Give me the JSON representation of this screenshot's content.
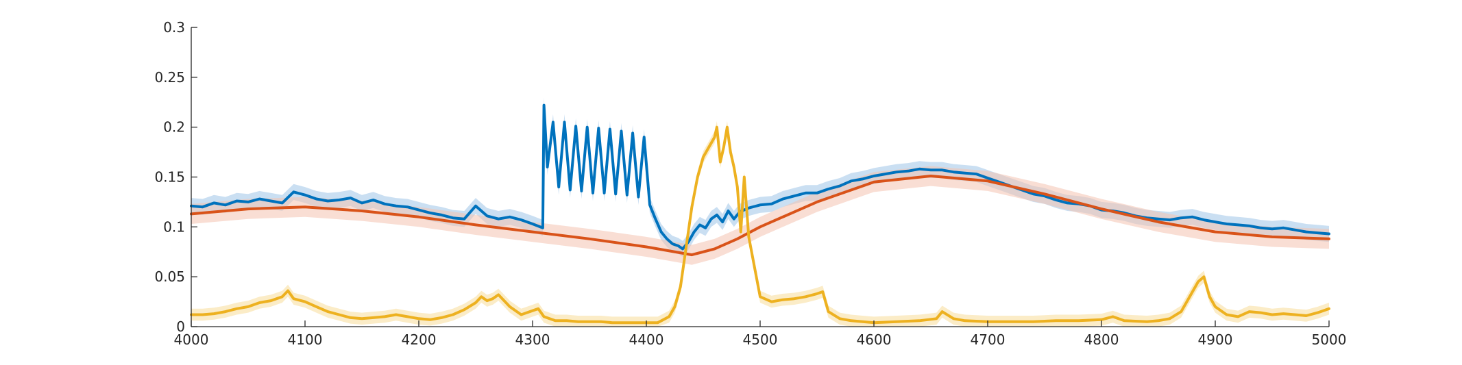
{
  "chart_data": {
    "type": "line",
    "xlim": [
      4000,
      5000
    ],
    "ylim": [
      0,
      0.3
    ],
    "x_ticks": [
      4000,
      4100,
      4200,
      4300,
      4400,
      4500,
      4600,
      4700,
      4800,
      4900,
      5000
    ],
    "y_ticks": [
      0,
      0.05,
      0.1,
      0.15,
      0.2,
      0.25,
      0.3
    ],
    "x_tick_labels": [
      "4000",
      "4100",
      "4200",
      "4300",
      "4400",
      "4500",
      "4600",
      "4700",
      "4800",
      "4900",
      "5000"
    ],
    "y_tick_labels": [
      "0",
      "0.05",
      "0.1",
      "0.15",
      "0.2",
      "0.25",
      "0.3"
    ],
    "grid": false,
    "series": [
      {
        "color": "#0072BD",
        "band_color": "#9fc5e8",
        "band_half_width": 0.008,
        "x": [
          4000,
          4010,
          4020,
          4030,
          4040,
          4050,
          4060,
          4070,
          4080,
          4090,
          4100,
          4110,
          4120,
          4130,
          4140,
          4150,
          4160,
          4170,
          4180,
          4190,
          4200,
          4210,
          4220,
          4230,
          4240,
          4250,
          4260,
          4270,
          4280,
          4290,
          4300,
          4309,
          4310,
          4313,
          4318,
          4323,
          4328,
          4333,
          4338,
          4343,
          4348,
          4353,
          4358,
          4363,
          4368,
          4373,
          4378,
          4383,
          4388,
          4393,
          4398,
          4403,
          4408,
          4413,
          4418,
          4423,
          4428,
          4432,
          4437,
          4442,
          4447,
          4452,
          4457,
          4462,
          4467,
          4472,
          4477,
          4482,
          4490,
          4500,
          4510,
          4520,
          4530,
          4540,
          4550,
          4560,
          4570,
          4580,
          4590,
          4600,
          4610,
          4620,
          4630,
          4640,
          4650,
          4660,
          4670,
          4680,
          4690,
          4700,
          4710,
          4720,
          4730,
          4740,
          4750,
          4760,
          4770,
          4780,
          4790,
          4800,
          4810,
          4820,
          4830,
          4840,
          4850,
          4860,
          4870,
          4880,
          4890,
          4900,
          4910,
          4920,
          4930,
          4940,
          4950,
          4960,
          4970,
          4980,
          4990,
          5000
        ],
        "y": [
          0.121,
          0.12,
          0.124,
          0.122,
          0.126,
          0.125,
          0.128,
          0.126,
          0.124,
          0.135,
          0.132,
          0.128,
          0.126,
          0.127,
          0.129,
          0.124,
          0.127,
          0.123,
          0.121,
          0.12,
          0.117,
          0.114,
          0.112,
          0.109,
          0.108,
          0.121,
          0.111,
          0.108,
          0.11,
          0.107,
          0.103,
          0.099,
          0.222,
          0.16,
          0.205,
          0.14,
          0.205,
          0.137,
          0.201,
          0.136,
          0.2,
          0.134,
          0.199,
          0.134,
          0.198,
          0.133,
          0.196,
          0.132,
          0.194,
          0.13,
          0.19,
          0.122,
          0.108,
          0.095,
          0.088,
          0.083,
          0.081,
          0.078,
          0.085,
          0.095,
          0.102,
          0.099,
          0.108,
          0.112,
          0.105,
          0.116,
          0.108,
          0.115,
          0.119,
          0.122,
          0.123,
          0.128,
          0.131,
          0.134,
          0.134,
          0.138,
          0.141,
          0.146,
          0.148,
          0.151,
          0.153,
          0.155,
          0.156,
          0.158,
          0.157,
          0.157,
          0.155,
          0.154,
          0.153,
          0.149,
          0.145,
          0.141,
          0.137,
          0.133,
          0.131,
          0.127,
          0.124,
          0.123,
          0.121,
          0.117,
          0.116,
          0.114,
          0.111,
          0.109,
          0.108,
          0.107,
          0.109,
          0.11,
          0.107,
          0.105,
          0.103,
          0.102,
          0.101,
          0.099,
          0.098,
          0.099,
          0.097,
          0.095,
          0.094,
          0.093
        ]
      },
      {
        "color": "#D95319",
        "band_color": "#f4c3b0",
        "band_half_width": 0.01,
        "x": [
          4000,
          4050,
          4100,
          4150,
          4200,
          4250,
          4300,
          4350,
          4400,
          4440,
          4460,
          4480,
          4500,
          4550,
          4600,
          4650,
          4700,
          4750,
          4800,
          4850,
          4900,
          4950,
          5000
        ],
        "y": [
          0.113,
          0.118,
          0.12,
          0.116,
          0.11,
          0.102,
          0.095,
          0.088,
          0.08,
          0.072,
          0.078,
          0.088,
          0.1,
          0.125,
          0.145,
          0.151,
          0.146,
          0.133,
          0.118,
          0.105,
          0.095,
          0.09,
          0.088
        ]
      },
      {
        "color": "#EDB120",
        "band_color": "#f8dd99",
        "band_half_width": 0.006,
        "x": [
          4000,
          4010,
          4020,
          4030,
          4040,
          4050,
          4060,
          4070,
          4080,
          4085,
          4090,
          4100,
          4110,
          4120,
          4130,
          4140,
          4150,
          4160,
          4170,
          4180,
          4190,
          4200,
          4210,
          4220,
          4230,
          4240,
          4250,
          4255,
          4260,
          4265,
          4270,
          4280,
          4290,
          4300,
          4305,
          4310,
          4320,
          4330,
          4340,
          4350,
          4360,
          4370,
          4380,
          4390,
          4400,
          4410,
          4420,
          4425,
          4430,
          4435,
          4440,
          4445,
          4450,
          4455,
          4460,
          4462,
          4465,
          4468,
          4471,
          4474,
          4477,
          4480,
          4483,
          4486,
          4490,
          4495,
          4500,
          4510,
          4520,
          4530,
          4540,
          4550,
          4555,
          4560,
          4570,
          4580,
          4590,
          4600,
          4620,
          4640,
          4655,
          4660,
          4670,
          4680,
          4700,
          4720,
          4740,
          4760,
          4780,
          4800,
          4810,
          4820,
          4840,
          4850,
          4860,
          4870,
          4875,
          4880,
          4885,
          4890,
          4895,
          4900,
          4910,
          4920,
          4930,
          4940,
          4950,
          4960,
          4970,
          4980,
          4990,
          5000
        ],
        "y": [
          0.012,
          0.012,
          0.013,
          0.015,
          0.018,
          0.02,
          0.024,
          0.026,
          0.03,
          0.036,
          0.028,
          0.025,
          0.02,
          0.015,
          0.012,
          0.009,
          0.008,
          0.009,
          0.01,
          0.012,
          0.01,
          0.008,
          0.007,
          0.009,
          0.012,
          0.017,
          0.024,
          0.03,
          0.026,
          0.028,
          0.032,
          0.02,
          0.012,
          0.016,
          0.018,
          0.01,
          0.006,
          0.006,
          0.005,
          0.005,
          0.005,
          0.004,
          0.004,
          0.004,
          0.004,
          0.004,
          0.01,
          0.02,
          0.04,
          0.08,
          0.12,
          0.15,
          0.17,
          0.18,
          0.19,
          0.2,
          0.165,
          0.18,
          0.2,
          0.175,
          0.16,
          0.14,
          0.095,
          0.15,
          0.09,
          0.06,
          0.03,
          0.025,
          0.027,
          0.028,
          0.03,
          0.033,
          0.035,
          0.015,
          0.008,
          0.006,
          0.005,
          0.004,
          0.005,
          0.006,
          0.008,
          0.015,
          0.008,
          0.006,
          0.005,
          0.005,
          0.005,
          0.006,
          0.006,
          0.007,
          0.01,
          0.006,
          0.005,
          0.006,
          0.008,
          0.015,
          0.025,
          0.035,
          0.045,
          0.05,
          0.03,
          0.02,
          0.012,
          0.01,
          0.015,
          0.014,
          0.012,
          0.013,
          0.012,
          0.011,
          0.014,
          0.018
        ]
      }
    ]
  }
}
